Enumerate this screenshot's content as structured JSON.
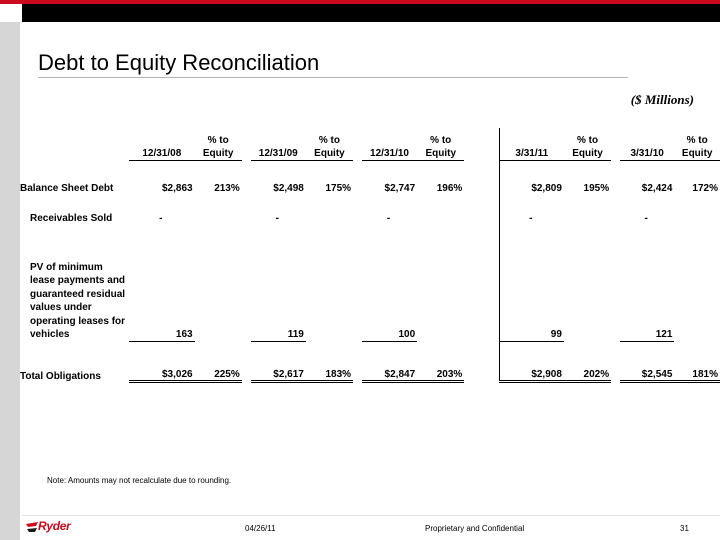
{
  "slide": {
    "title": "Debt to Equity Reconciliation",
    "units": "($ Millions)",
    "note": "Note: Amounts may not recalculate due to rounding.",
    "footer": {
      "date": "04/26/11",
      "confidential": "Proprietary and Confidential",
      "page": "31",
      "logo_text": "Ryder"
    },
    "colors": {
      "accent_red": "#cc0a1e",
      "header_black": "#000000",
      "sidebar_gray": "#d6d6d6"
    }
  },
  "table": {
    "headers": [
      {
        "line1": "",
        "line2": "12/31/08"
      },
      {
        "line1": "% to",
        "line2": "Equity"
      },
      {
        "line1": "",
        "line2": "12/31/09"
      },
      {
        "line1": "% to",
        "line2": "Equity"
      },
      {
        "line1": "",
        "line2": "12/31/10"
      },
      {
        "line1": "% to",
        "line2": "Equity"
      },
      {
        "line1": "",
        "line2": "3/31/11"
      },
      {
        "line1": "% to",
        "line2": "Equity"
      },
      {
        "line1": "",
        "line2": "3/31/10"
      },
      {
        "line1": "% to",
        "line2": "Equity"
      }
    ],
    "rows": {
      "balance_sheet_debt": {
        "label": "Balance Sheet Debt",
        "values": [
          "$2,863",
          "213%",
          "$2,498",
          "175%",
          "$2,747",
          "196%",
          "$2,809",
          "195%",
          "$2,424",
          "172%"
        ]
      },
      "receivables_sold": {
        "label": "Receivables Sold",
        "values": [
          "-",
          "",
          "-",
          "",
          "-",
          "",
          "-",
          "",
          "-",
          ""
        ]
      },
      "pv_leases": {
        "label_lines": [
          "PV of minimum",
          "lease payments and",
          "guaranteed residual",
          "values under",
          "operating leases for",
          "vehicles"
        ],
        "values": [
          "163",
          "",
          "119",
          "",
          "100",
          "",
          "99",
          "",
          "121",
          ""
        ]
      },
      "total_obligations": {
        "label": "Total Obligations",
        "values": [
          "$3,026",
          "225%",
          "$2,617",
          "183%",
          "$2,847",
          "203%",
          "$2,908",
          "202%",
          "$2,545",
          "181%"
        ]
      }
    }
  }
}
